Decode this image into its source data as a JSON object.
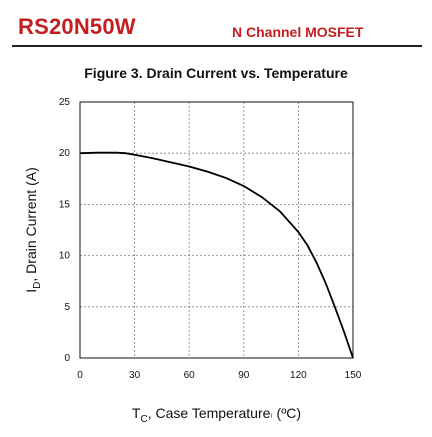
{
  "header": {
    "part_number": "RS20N50W",
    "device_type": "N Channel MOSFET"
  },
  "colors": {
    "brand": "#c41e1e",
    "curve": "#000000",
    "grid": "#7f7f7f"
  },
  "chart_data": {
    "type": "line",
    "title": "Figure 3. Drain Current vs. Temperature",
    "xlabel": {
      "main": "T",
      "sub": "C",
      "rest": ", Case Temperature",
      "mark": "⁽",
      "unit": " (ºC)"
    },
    "ylabel": {
      "main": "I",
      "sub": "D",
      "rest": ", Drain Current (A)"
    },
    "xlim": [
      0,
      150
    ],
    "ylim": [
      0,
      25
    ],
    "xticks": [
      0,
      30,
      60,
      90,
      120,
      150
    ],
    "yticks": [
      0,
      5,
      10,
      15,
      20,
      25
    ],
    "grid": true,
    "series": [
      {
        "x": [
          0,
          10,
          20,
          25,
          30,
          40,
          50,
          60,
          70,
          80,
          90,
          100,
          110,
          120,
          125,
          130,
          135,
          140,
          145,
          150
        ],
        "y": [
          20.0,
          20.05,
          20.05,
          20.0,
          19.85,
          19.5,
          19.1,
          18.7,
          18.2,
          17.6,
          16.8,
          15.7,
          14.3,
          12.3,
          11.0,
          9.3,
          7.3,
          5.0,
          2.6,
          0.0
        ]
      }
    ]
  }
}
